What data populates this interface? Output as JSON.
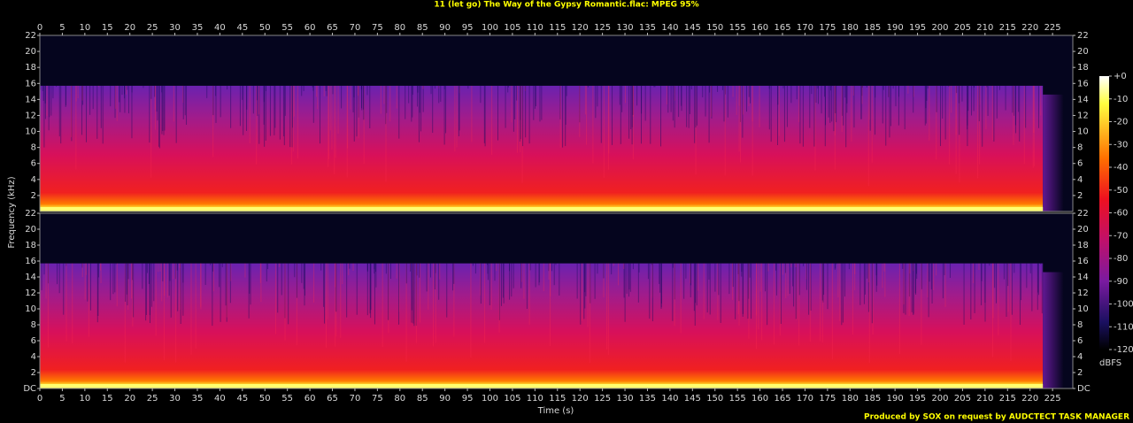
{
  "chart_data": {
    "type": "spectrogram",
    "title": "11 (let go) The Way of the Gypsy Romantic.flac: MPEG 95%",
    "x_label": "Time (s)",
    "y_label": "Frequency (kHz)",
    "xlim": [
      0,
      229.5
    ],
    "xticks": [
      0,
      5,
      10,
      15,
      20,
      25,
      30,
      35,
      40,
      45,
      50,
      55,
      60,
      65,
      70,
      75,
      80,
      85,
      90,
      95,
      100,
      105,
      110,
      115,
      120,
      125,
      130,
      135,
      140,
      145,
      150,
      155,
      160,
      165,
      170,
      175,
      180,
      185,
      190,
      195,
      200,
      205,
      210,
      215,
      220,
      225
    ],
    "ylim": [
      0,
      22
    ],
    "channels": [
      {
        "yticks": [
          2,
          4,
          6,
          8,
          10,
          12,
          14,
          16,
          18,
          20,
          22
        ]
      },
      {
        "yticks": [
          {
            "value": 0,
            "label": "DC"
          },
          2,
          4,
          6,
          8,
          10,
          12,
          14,
          16,
          18,
          20,
          22
        ]
      }
    ],
    "colorbar": {
      "label": "dBFS",
      "zlim": [
        -120,
        0
      ],
      "ticks": [
        {
          "value": 0,
          "label": "+0"
        },
        -10,
        -20,
        -30,
        -40,
        -50,
        -60,
        -70,
        -80,
        -90,
        -100,
        -110,
        -120
      ]
    },
    "footer": "Produced by SOX on request by AUDCTECT TASK MANAGER"
  }
}
